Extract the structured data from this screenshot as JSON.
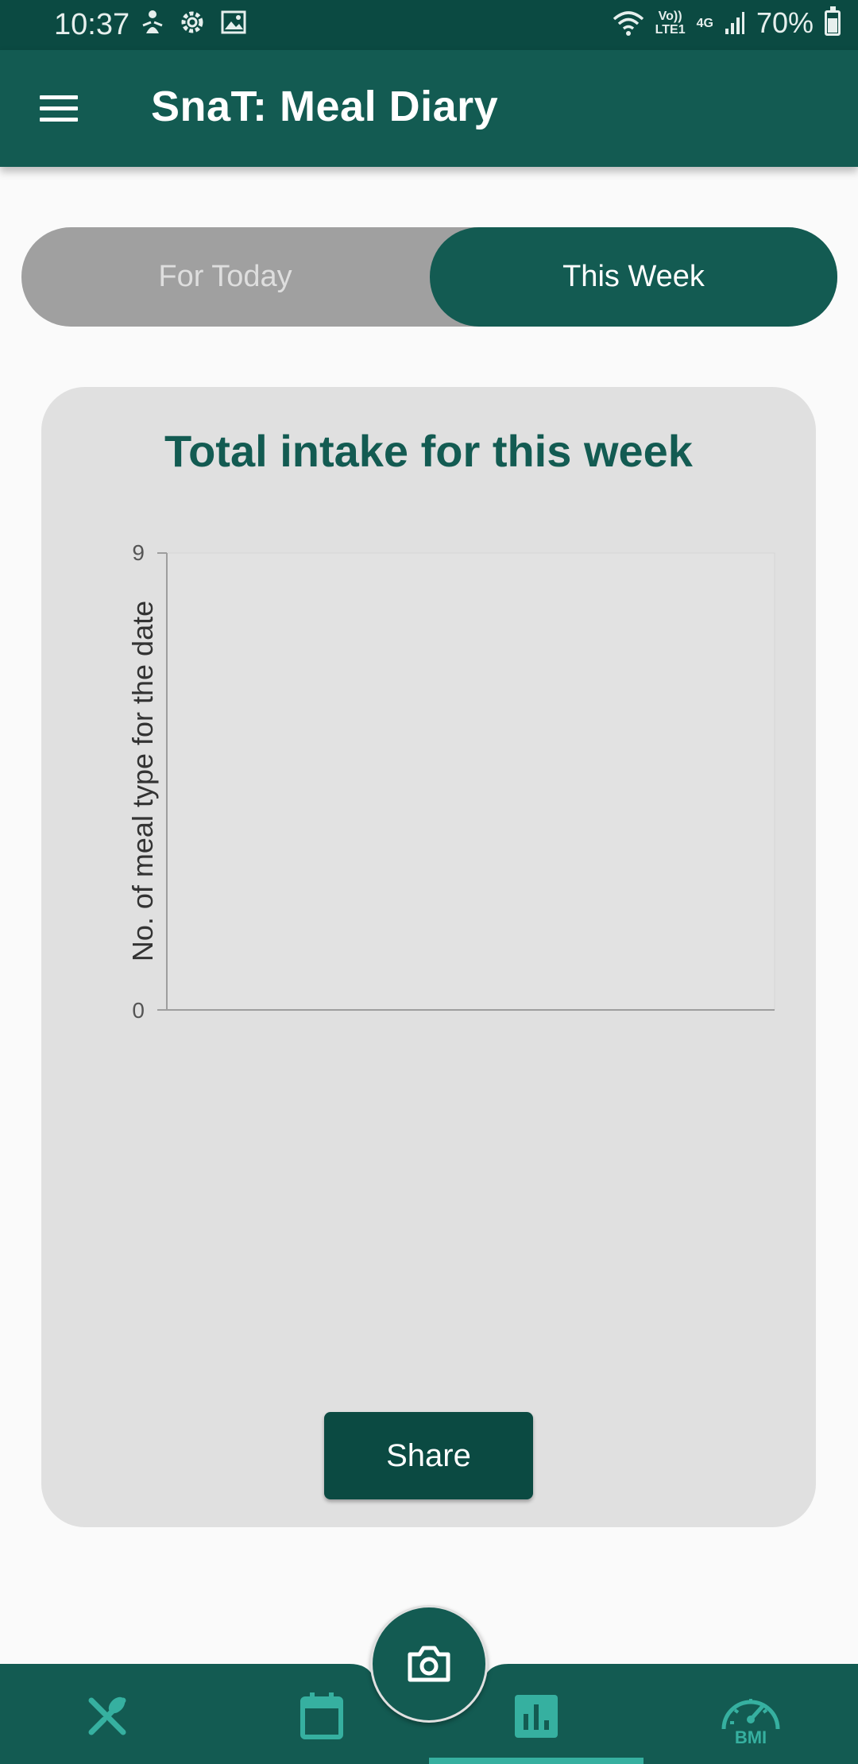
{
  "status_bar": {
    "time": "10:37",
    "network_top": "Vo))",
    "network_bottom": "LTE1",
    "signal_label": "4G",
    "battery": "70%"
  },
  "app_bar": {
    "title": "SnaT: Meal Diary"
  },
  "tabs": {
    "today_label": "For Today",
    "week_label": "This Week",
    "active": "This Week"
  },
  "card": {
    "title": "Total intake for this week",
    "share_label": "Share"
  },
  "chart_data": {
    "type": "bar",
    "categories": [],
    "series": [],
    "xlabel": "",
    "ylabel": "No. of meal type for the date",
    "ylim": [
      0,
      9
    ],
    "yticks": [
      "9",
      "0"
    ],
    "grid": false
  },
  "bottom_nav": {
    "items": [
      {
        "icon": "fork-knife-icon"
      },
      {
        "icon": "calendar-icon"
      },
      {
        "icon": "bar-chart-icon",
        "active": true
      },
      {
        "icon": "bmi-gauge-icon",
        "label": "BMI"
      }
    ],
    "fab_icon": "camera-icon"
  },
  "colors": {
    "primary": "#135b52",
    "primary_dark": "#0b4a42",
    "accent": "#36b0a0",
    "card_bg": "#e0e0e0",
    "tab_inactive": "#a0a0a0"
  }
}
